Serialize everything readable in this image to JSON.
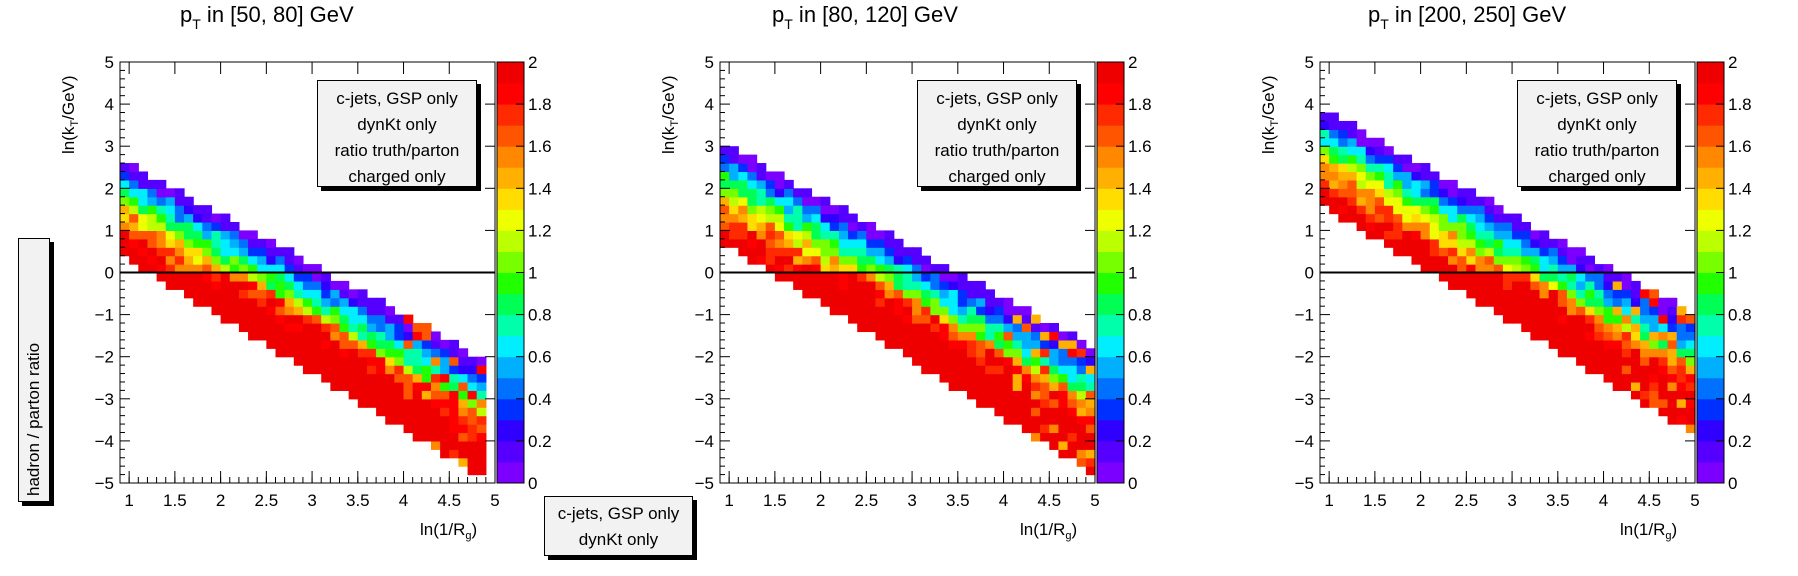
{
  "chart_data": [
    {
      "type": "heatmap",
      "title_main": "p",
      "title_sub": "T",
      "title_rest": " in [50, 80] GeV",
      "xlabel_main": "ln(1/R",
      "xlabel_sub": "g",
      "xlabel_end": ")",
      "ylabel_main": "ln(k",
      "ylabel_sub": "T",
      "ylabel_end": "/GeV)",
      "xlim": [
        0.9,
        5.0
      ],
      "ylim": [
        -5,
        5
      ],
      "zlim": [
        0,
        2
      ],
      "x_ticks": [
        "1",
        "1.5",
        "2",
        "2.5",
        "3",
        "3.5",
        "4",
        "4.5",
        "5"
      ],
      "y_ticks": [
        "−5",
        "−4",
        "−3",
        "−2",
        "−1",
        "0",
        "1",
        "2",
        "3",
        "4",
        "5"
      ],
      "z_ticks": [
        "0",
        "0.2",
        "0.4",
        "0.6",
        "0.8",
        "1",
        "1.2",
        "1.4",
        "1.6",
        "1.8",
        "2"
      ],
      "reference_line_y": 0,
      "band": {
        "upper_intercept": 3.8,
        "slope": -1.2,
        "lower_offset": 2.3,
        "top_x": 1.35
      },
      "legend": [
        "c-jets, GSP only",
        "dynKt only",
        "ratio truth/parton",
        "charged only"
      ]
    },
    {
      "type": "heatmap",
      "title_main": "p",
      "title_sub": "T",
      "title_rest": " in [80, 120] GeV",
      "xlabel_main": "ln(1/R",
      "xlabel_sub": "g",
      "xlabel_end": ")",
      "ylabel_main": "ln(k",
      "ylabel_sub": "T",
      "ylabel_end": "/GeV)",
      "xlim": [
        0.9,
        5.0
      ],
      "ylim": [
        -5,
        5
      ],
      "zlim": [
        0,
        2
      ],
      "x_ticks": [
        "1",
        "1.5",
        "2",
        "2.5",
        "3",
        "3.5",
        "4",
        "4.5",
        "5"
      ],
      "y_ticks": [
        "−5",
        "−4",
        "−3",
        "−2",
        "−1",
        "0",
        "1",
        "2",
        "3",
        "4",
        "5"
      ],
      "z_ticks": [
        "0",
        "0.2",
        "0.4",
        "0.6",
        "0.8",
        "1",
        "1.2",
        "1.4",
        "1.6",
        "1.8",
        "2"
      ],
      "reference_line_y": 0,
      "band": {
        "upper_intercept": 4.2,
        "slope": -1.2,
        "lower_offset": 2.4,
        "top_x": 1.6
      },
      "legend": [
        "c-jets, GSP only",
        "dynKt only",
        "ratio truth/parton",
        "charged only"
      ]
    },
    {
      "type": "heatmap",
      "title_main": "p",
      "title_sub": "T",
      "title_rest": " in [200, 250] GeV",
      "xlabel_main": "ln(1/R",
      "xlabel_sub": "g",
      "xlabel_end": ")",
      "ylabel_main": "ln(k",
      "ylabel_sub": "T",
      "ylabel_end": "/GeV)",
      "xlim": [
        0.9,
        5.0
      ],
      "ylim": [
        -5,
        5
      ],
      "zlim": [
        0,
        2
      ],
      "x_ticks": [
        "1",
        "1.5",
        "2",
        "2.5",
        "3",
        "3.5",
        "4",
        "4.5",
        "5"
      ],
      "y_ticks": [
        "−5",
        "−4",
        "−3",
        "−2",
        "−1",
        "0",
        "1",
        "2",
        "3",
        "4",
        "5"
      ],
      "z_ticks": [
        "0",
        "0.2",
        "0.4",
        "0.6",
        "0.8",
        "1",
        "1.2",
        "1.4",
        "1.6",
        "1.8",
        "2"
      ],
      "reference_line_y": 0,
      "band": {
        "upper_intercept": 5.0,
        "slope": -1.2,
        "lower_offset": 2.3,
        "top_x": 2.1
      },
      "legend": [
        "c-jets, GSP only",
        "dynKt only",
        "ratio truth/parton",
        "charged only"
      ]
    }
  ],
  "side_label": "hadron / parton ratio",
  "bottom_legend": [
    "c-jets, GSP only",
    "dynKt only"
  ],
  "palette": [
    "#7b00ff",
    "#5500ff",
    "#3000ff",
    "#0030ff",
    "#0070ff",
    "#00b0ff",
    "#00eeff",
    "#00ffaa",
    "#00ff55",
    "#22ff00",
    "#77ff00",
    "#bbff00",
    "#eeff00",
    "#ffdd00",
    "#ffb000",
    "#ff8800",
    "#ff5500",
    "#ff2a00",
    "#ff0000",
    "#ee0000"
  ]
}
